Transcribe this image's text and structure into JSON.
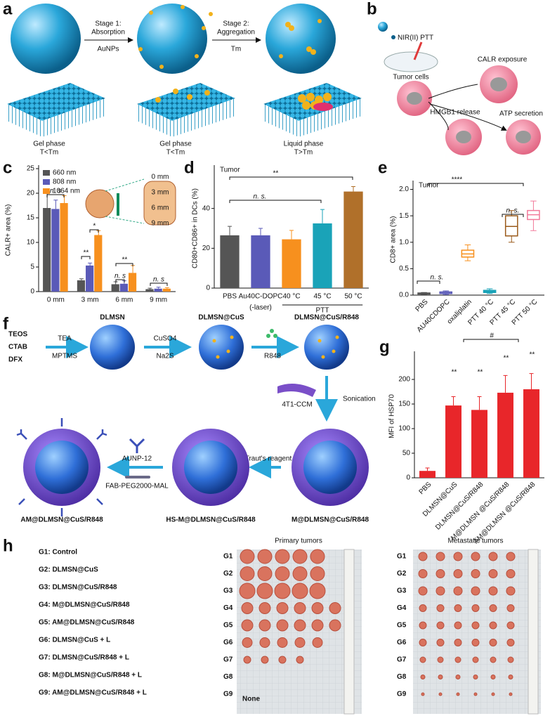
{
  "panel_a": {
    "label": "a",
    "stage1": "Stage 1:",
    "stage1b": "Absorption",
    "aunps": "AuNPs",
    "stage2": "Stage 2:",
    "stage2b": "Aggregation",
    "tm": "Tm",
    "phases": [
      "Gel phase",
      "Gel phase",
      "Liquid phase"
    ],
    "conditions": [
      "T<Tm",
      "T<Tm",
      "T>Tm"
    ]
  },
  "panel_b": {
    "label": "b",
    "ptt": "NIR(II) PTT",
    "tumor": "Tumor cells",
    "calr": "CALR exposure",
    "hmgb1": "HMGB1 release",
    "atp": "ATP secretion"
  },
  "panel_f": {
    "label": "f",
    "reagents": [
      "TEOS",
      "CTAB",
      "DFX"
    ],
    "texts": {
      "tea": "TEA",
      "mptms": "MPTMS",
      "dlmsn": "DLMSN",
      "cuso4": "CuSO4",
      "na2s": "Na2S",
      "dlmsn_cus": "DLMSN@CuS",
      "r848": "R848",
      "dlmsn_cus_r848": "DLMSN@CuS/R848",
      "ccm": "4T1-CCM",
      "sonication": "Sonication",
      "traut": "Traut's reagent",
      "m_product": "M@DLMSN@CuS/R848",
      "aunp": "AUNP-12",
      "fab": "FAB-PEG2000-MAL",
      "hs_product": "HS-M@DLMSN@CuS/R848",
      "am_product": "AM@DLMSN@CuS/R848"
    }
  },
  "panel_h": {
    "label": "h",
    "groups": [
      "G1: Control",
      "G2: DLMSN@CuS",
      "G3: DLMSN@CuS/R848",
      "G4: M@DLMSN@CuS/R848",
      "G5: AM@DLMSN@CuS/R848",
      "G6: DLMSN@CuS + L",
      "G7: DLMSN@CuS/R848 + L",
      "G8: M@DLMSN@CuS/R848 + L",
      "G9: AM@DLMSN@CuS/R848 + L"
    ],
    "primary": "Primary tumors",
    "metastatic": "Metastatic tumors",
    "row_labels": [
      "G1",
      "G2",
      "G3",
      "G4",
      "G5",
      "G6",
      "G7",
      "G8",
      "G9"
    ],
    "none": "None"
  },
  "chart_data": [
    {
      "type": "bar",
      "label": "c",
      "ylabel": "CALR+ area (%)",
      "categories": [
        "0 mm",
        "3 mm",
        "6 mm",
        "9 mm"
      ],
      "series": [
        {
          "name": "660 nm",
          "color": "#555555",
          "values": [
            17,
            2.3,
            1.5,
            0.5
          ],
          "errors": [
            3,
            0.3,
            0.5,
            0.2
          ]
        },
        {
          "name": "808 nm",
          "color": "#5a5ab8",
          "values": [
            16.8,
            5.3,
            1.6,
            0.6
          ],
          "errors": [
            1.8,
            0.5,
            0.6,
            0.3
          ]
        },
        {
          "name": "1064 nm",
          "color": "#f7901e",
          "values": [
            18,
            11.5,
            3.8,
            0.6
          ],
          "errors": [
            1.5,
            0.9,
            1.5,
            0.2
          ]
        }
      ],
      "ylim": [
        0,
        25
      ],
      "yticks": [
        0,
        5,
        10,
        15,
        20,
        25
      ],
      "legend": "upper left",
      "annotations": [
        "n. s",
        "**",
        "*",
        "n. s",
        "**",
        "n. s"
      ],
      "inset_labels": [
        "0 mm",
        "3 mm",
        "6 mm",
        "9 mm"
      ]
    },
    {
      "type": "bar",
      "label": "d",
      "subtitle": "Tumor",
      "ylabel": "CD80+CD86+ in DCs (%)",
      "categories": [
        "PBS",
        "Au40C-DOPC",
        "40 °C",
        "45 °C",
        "50 °C"
      ],
      "colors": [
        "#555555",
        "#5a5ab8",
        "#f7901e",
        "#1aa3b8",
        "#b0702a"
      ],
      "values": [
        26.5,
        26.5,
        24.5,
        32.5,
        48.5
      ],
      "errors": [
        4.5,
        3.5,
        4.5,
        7,
        2.5
      ],
      "ylim": [
        0,
        60
      ],
      "yticks": [
        0,
        20,
        40
      ],
      "group_labels": [
        "(-laser)",
        "PTT"
      ],
      "annotations": [
        "**",
        "n. s."
      ]
    },
    {
      "type": "box",
      "label": "e",
      "subtitle": "Tumor",
      "ylabel": "CD8+ area (%)",
      "categories": [
        "PBS",
        "AU40CDOPC",
        "oxaliplatin",
        "PTT 40 °C",
        "PTT 45 °C",
        "PTT 50 °C"
      ],
      "colors": [
        "#555555",
        "#5a5ab8",
        "#f7901e",
        "#1aa3b8",
        "#9a5a1a",
        "#f27a9a"
      ],
      "min": [
        0.01,
        0.01,
        0.65,
        0.03,
        1.0,
        1.22
      ],
      "q1": [
        0.02,
        0.03,
        0.72,
        0.05,
        1.12,
        1.43
      ],
      "median": [
        0.03,
        0.04,
        0.78,
        0.07,
        1.3,
        1.52
      ],
      "q3": [
        0.04,
        0.06,
        0.85,
        0.09,
        1.5,
        1.6
      ],
      "max": [
        0.05,
        0.08,
        0.95,
        0.12,
        1.6,
        1.78
      ],
      "ylim": [
        0,
        2.1
      ],
      "yticks": [
        {
          "value": 0,
          "label": "0.0"
        },
        {
          "value": 0.5,
          "label": "0.5"
        },
        {
          "value": 1,
          "label": "1.0"
        },
        {
          "value": 1.5,
          "label": "1.5"
        },
        {
          "value": 2,
          "label": "2.0"
        }
      ],
      "annotations": [
        "****",
        "n. s.",
        "n. s."
      ]
    },
    {
      "type": "bar",
      "label": "g",
      "ylabel": "MFI of HSP70",
      "categories": [
        "PBS",
        "DLMSN@CuS",
        "DLMSN@CuS/R848",
        "M@DLMSN @CuS/R848",
        "AM@DLMSN @CuS/R848"
      ],
      "color": "#e8262a",
      "values": [
        14,
        147,
        138,
        173,
        180
      ],
      "errors": [
        6,
        18,
        27,
        35,
        32
      ],
      "ylim": [
        0,
        250
      ],
      "yticks": [
        0,
        50,
        100,
        150,
        200
      ],
      "annotations": [
        "**",
        "**",
        "**",
        "**",
        "#"
      ]
    }
  ]
}
